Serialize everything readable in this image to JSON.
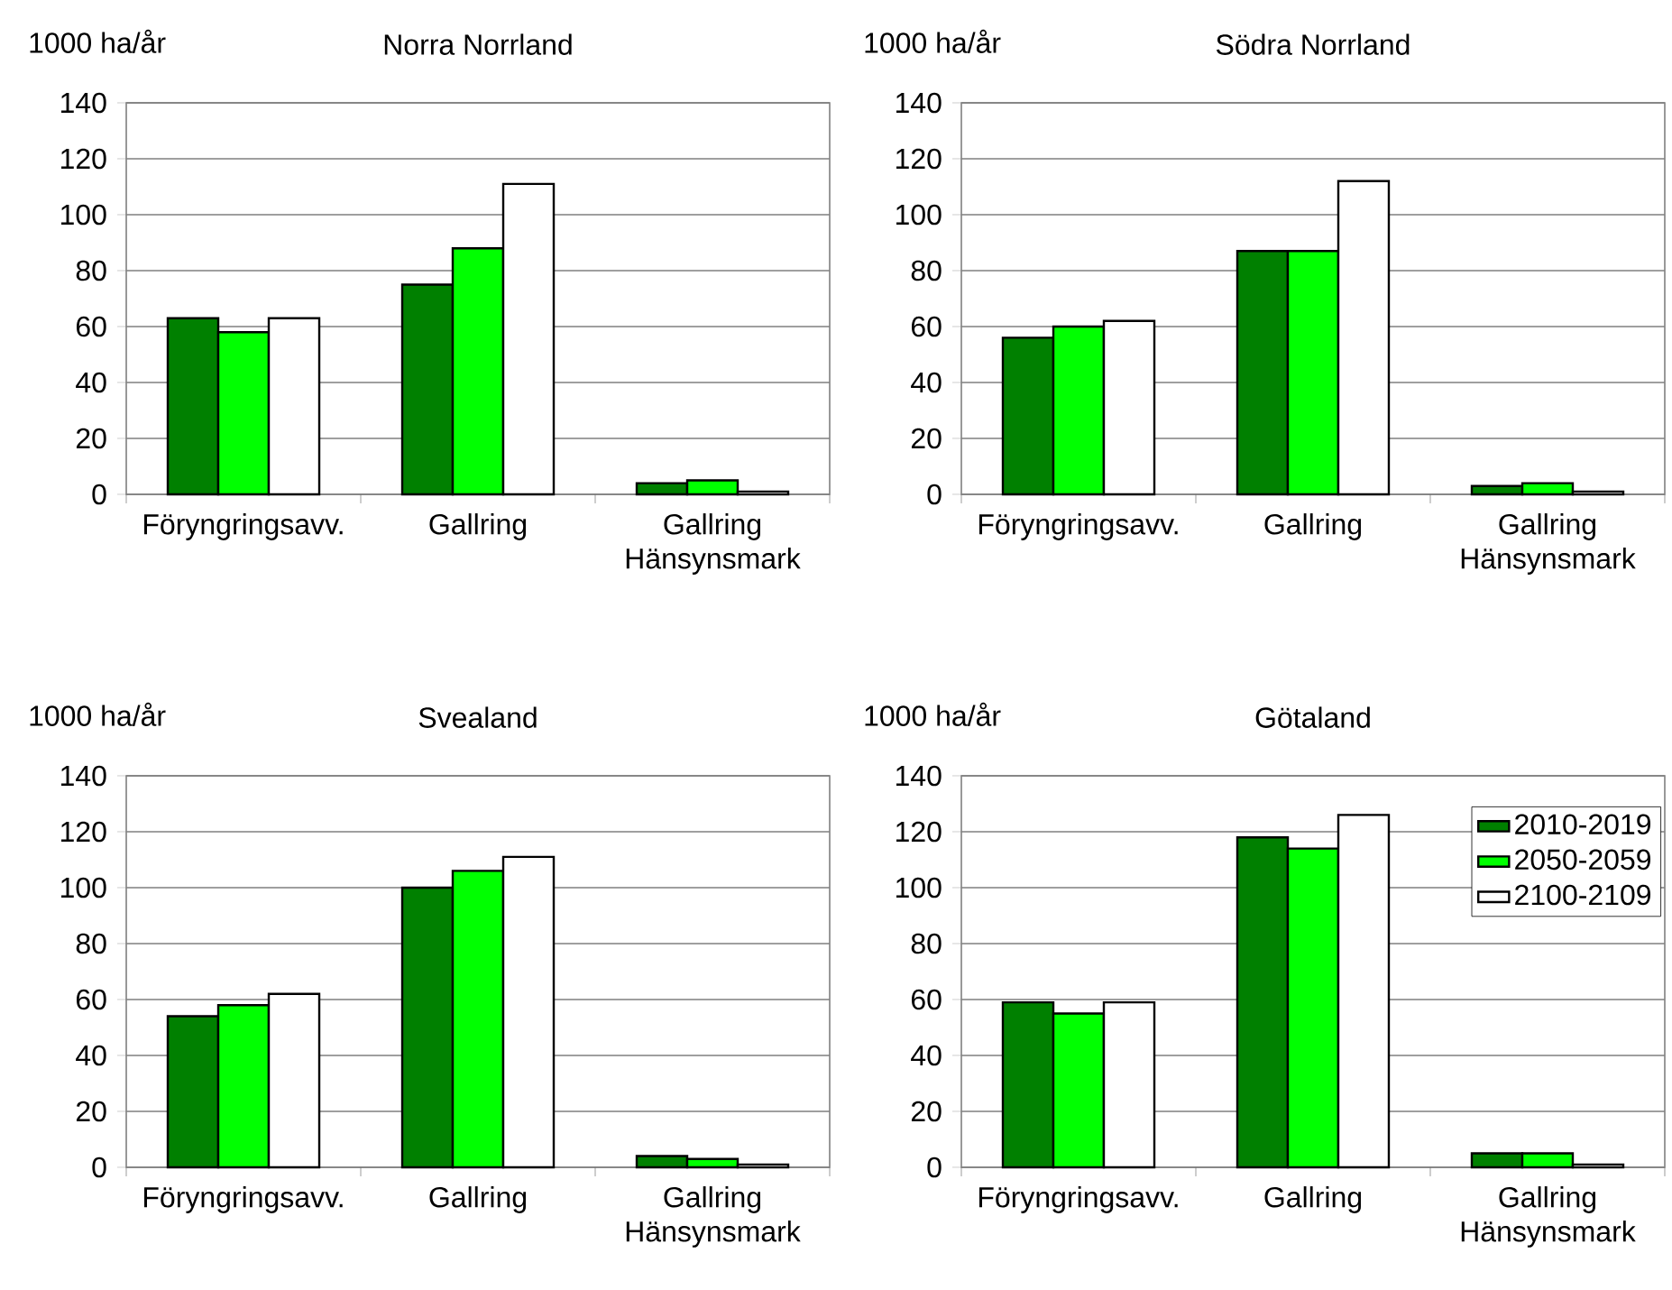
{
  "chart_data": [
    {
      "type": "bar",
      "title": "Norra Norrland",
      "ylabel": "1000 ha/år",
      "categories": [
        "Föryngringsavv.",
        "Gallring",
        "Gallring Hänsynsmark"
      ],
      "ylim": [
        0,
        140
      ],
      "yticks": [
        0,
        20,
        40,
        60,
        80,
        100,
        120,
        140
      ],
      "grid": "y",
      "series": [
        {
          "color": "#008000",
          "values": [
            63,
            75,
            4
          ]
        },
        {
          "color": "#00ff00",
          "values": [
            58,
            88,
            5
          ]
        },
        {
          "color": "#ffffff",
          "values": [
            63,
            111,
            1
          ]
        }
      ]
    },
    {
      "type": "bar",
      "title": "Södra Norrland",
      "ylabel": "1000 ha/år",
      "categories": [
        "Föryngringsavv.",
        "Gallring",
        "Gallring Hänsynsmark"
      ],
      "ylim": [
        0,
        140
      ],
      "yticks": [
        0,
        20,
        40,
        60,
        80,
        100,
        120,
        140
      ],
      "grid": "y",
      "series": [
        {
          "color": "#008000",
          "values": [
            56,
            87,
            3
          ]
        },
        {
          "color": "#00ff00",
          "values": [
            60,
            87,
            4
          ]
        },
        {
          "color": "#ffffff",
          "values": [
            62,
            112,
            1
          ]
        }
      ]
    },
    {
      "type": "bar",
      "title": "Svealand",
      "ylabel": "1000 ha/år",
      "categories": [
        "Föryngringsavv.",
        "Gallring",
        "Gallring Hänsynsmark"
      ],
      "ylim": [
        0,
        140
      ],
      "yticks": [
        0,
        20,
        40,
        60,
        80,
        100,
        120,
        140
      ],
      "grid": "y",
      "series": [
        {
          "color": "#008000",
          "values": [
            54,
            100,
            4
          ]
        },
        {
          "color": "#00ff00",
          "values": [
            58,
            106,
            3
          ]
        },
        {
          "color": "#ffffff",
          "values": [
            62,
            111,
            1
          ]
        }
      ]
    },
    {
      "type": "bar",
      "title": "Götaland",
      "ylabel": "1000 ha/år",
      "categories": [
        "Föryngringsavv.",
        "Gallring",
        "Gallring Hänsynsmark"
      ],
      "ylim": [
        0,
        140
      ],
      "yticks": [
        0,
        20,
        40,
        60,
        80,
        100,
        120,
        140
      ],
      "grid": "y",
      "legend": "top right",
      "series": [
        {
          "name": "2010-2019",
          "color": "#008000",
          "values": [
            59,
            118,
            5
          ]
        },
        {
          "name": "2050-2059",
          "color": "#00ff00",
          "values": [
            55,
            114,
            5
          ]
        },
        {
          "name": "2100-2109",
          "color": "#ffffff",
          "values": [
            59,
            126,
            1
          ]
        }
      ]
    }
  ]
}
